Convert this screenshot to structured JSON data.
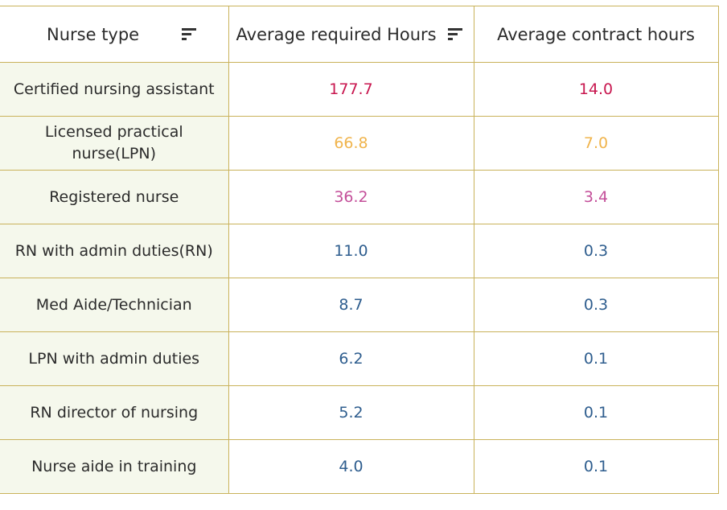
{
  "table": {
    "headers": {
      "nurse_type": "Nurse type",
      "avg_required": "Average required Hours",
      "avg_contract": "Average contract hours"
    },
    "icons": {
      "nurse_type_sort": "sort-icon",
      "avg_required_sort": "sort-icon"
    },
    "colors": {
      "border": "#c9b25a",
      "label_bg": "#f5f8ec",
      "red": "#c8174f",
      "orange": "#f0b44c",
      "pink": "#c4509a",
      "blue": "#2e5d8e"
    },
    "rows": [
      {
        "type": "Certified nursing assistant",
        "required": "177.7",
        "contract": "14.0",
        "color": "#c8174f"
      },
      {
        "type": "Licensed practical nurse(LPN)",
        "required": "66.8",
        "contract": "7.0",
        "color": "#f0b44c"
      },
      {
        "type": "Registered nurse",
        "required": "36.2",
        "contract": "3.4",
        "color": "#c4509a"
      },
      {
        "type": "RN with admin duties(RN)",
        "required": "11.0",
        "contract": "0.3",
        "color": "#2e5d8e"
      },
      {
        "type": "Med Aide/Technician",
        "required": "8.7",
        "contract": "0.3",
        "color": "#2e5d8e"
      },
      {
        "type": "LPN with admin duties",
        "required": "6.2",
        "contract": "0.1",
        "color": "#2e5d8e"
      },
      {
        "type": "RN director of nursing",
        "required": "5.2",
        "contract": "0.1",
        "color": "#2e5d8e"
      },
      {
        "type": "Nurse aide in training",
        "required": "4.0",
        "contract": "0.1",
        "color": "#2e5d8e"
      }
    ]
  },
  "chart_data": {
    "type": "table",
    "columns": [
      "Nurse type",
      "Average required Hours",
      "Average contract hours"
    ],
    "categories": [
      "Certified nursing assistant",
      "Licensed practical nurse(LPN)",
      "Registered nurse",
      "RN with admin duties(RN)",
      "Med Aide/Technician",
      "LPN with admin duties",
      "RN director of nursing",
      "Nurse aide in training"
    ],
    "series": [
      {
        "name": "Average required Hours",
        "values": [
          177.7,
          66.8,
          36.2,
          11.0,
          8.7,
          6.2,
          5.2,
          4.0
        ]
      },
      {
        "name": "Average contract hours",
        "values": [
          14.0,
          7.0,
          3.4,
          0.3,
          0.3,
          0.1,
          0.1,
          0.1
        ]
      }
    ]
  }
}
